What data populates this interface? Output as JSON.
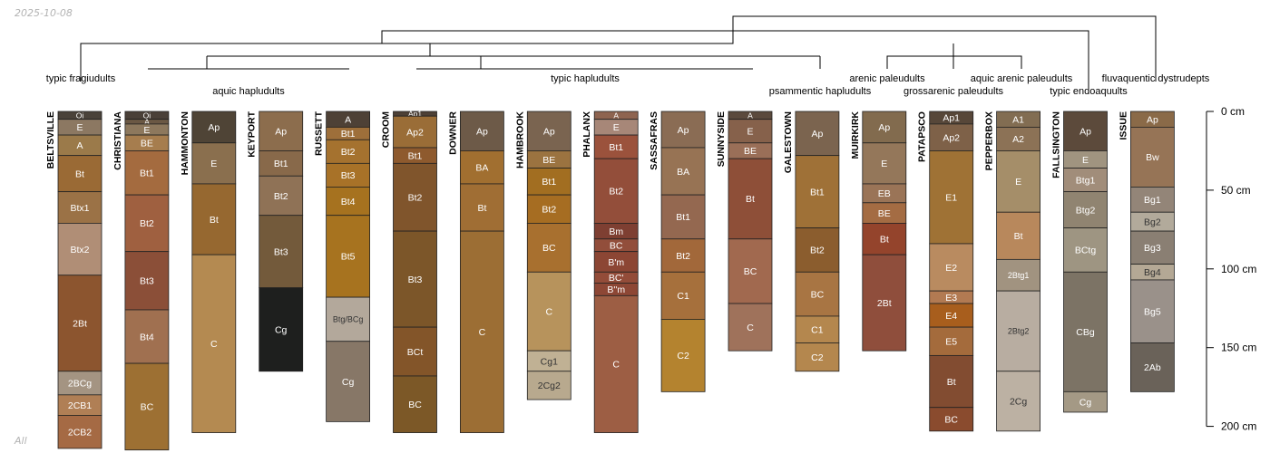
{
  "date_stamp": "2025-10-08",
  "corner_label": "All",
  "depth_axis": {
    "unit": "cm",
    "ticks": [
      {
        "depth": 0,
        "label": "0 cm"
      },
      {
        "depth": 50,
        "label": "50 cm"
      },
      {
        "depth": 100,
        "label": "100 cm"
      },
      {
        "depth": 150,
        "label": "150 cm"
      },
      {
        "depth": 200,
        "label": "200 cm"
      }
    ]
  },
  "taxa": [
    {
      "name": "typic fragiudults"
    },
    {
      "name": "aquic hapludults"
    },
    {
      "name": "typic hapludults"
    },
    {
      "name": "psammentic hapludults"
    },
    {
      "name": "arenic paleudults"
    },
    {
      "name": "grossarenic paleudults"
    },
    {
      "name": "aquic arenic paleudults"
    },
    {
      "name": "typic endoaquults"
    },
    {
      "name": "fluvaquentic dystrudepts"
    }
  ],
  "profiles": [
    {
      "name": "BELTSVILLE",
      "horizons": [
        {
          "name": "Oi",
          "top": 0,
          "bottom": 5,
          "color": "#4a423a"
        },
        {
          "name": "E",
          "top": 5,
          "bottom": 15,
          "color": "#8c7862"
        },
        {
          "name": "A",
          "top": 15,
          "bottom": 28,
          "color": "#9b7a4a"
        },
        {
          "name": "Bt",
          "top": 28,
          "bottom": 51,
          "color": "#9a6a35"
        },
        {
          "name": "Btx1",
          "top": 51,
          "bottom": 71,
          "color": "#9b7246"
        },
        {
          "name": "Btx2",
          "top": 71,
          "bottom": 104,
          "color": "#b08e76"
        },
        {
          "name": "2Bt",
          "top": 104,
          "bottom": 165,
          "color": "#8c552f"
        },
        {
          "name": "2BCg",
          "top": 165,
          "bottom": 180,
          "color": "#a49482"
        },
        {
          "name": "2CB1",
          "top": 180,
          "bottom": 193,
          "color": "#b07f55"
        },
        {
          "name": "2CB2",
          "top": 193,
          "bottom": 214,
          "color": "#a56a44"
        }
      ]
    },
    {
      "name": "CHRISTIANA",
      "horizons": [
        {
          "name": "Oi",
          "top": 0,
          "bottom": 5,
          "color": "#4a4038"
        },
        {
          "name": "A",
          "top": 5,
          "bottom": 8,
          "color": "#6b5844"
        },
        {
          "name": "E",
          "top": 8,
          "bottom": 15,
          "color": "#8d785d"
        },
        {
          "name": "BE",
          "top": 15,
          "bottom": 25,
          "color": "#a67d4e"
        },
        {
          "name": "Bt1",
          "top": 25,
          "bottom": 53,
          "color": "#a46b3f"
        },
        {
          "name": "Bt2",
          "top": 53,
          "bottom": 89,
          "color": "#9f6040"
        },
        {
          "name": "Bt3",
          "top": 89,
          "bottom": 126,
          "color": "#8b4f38"
        },
        {
          "name": "Bt4",
          "top": 126,
          "bottom": 160,
          "color": "#a07050"
        },
        {
          "name": "BC",
          "top": 160,
          "bottom": 215,
          "color": "#9d7033"
        }
      ]
    },
    {
      "name": "HAMMONTON",
      "horizons": [
        {
          "name": "Ap",
          "top": 0,
          "bottom": 20,
          "color": "#4f4436"
        },
        {
          "name": "E",
          "top": 20,
          "bottom": 46,
          "color": "#8a6f4e"
        },
        {
          "name": "Bt",
          "top": 46,
          "bottom": 91,
          "color": "#966830"
        },
        {
          "name": "C",
          "top": 91,
          "bottom": 204,
          "color": "#b48a51"
        }
      ]
    },
    {
      "name": "KEYPORT",
      "horizons": [
        {
          "name": "Ap",
          "top": 0,
          "bottom": 25,
          "color": "#8c6d4d"
        },
        {
          "name": "Bt1",
          "top": 25,
          "bottom": 41,
          "color": "#88694a"
        },
        {
          "name": "Bt2",
          "top": 41,
          "bottom": 66,
          "color": "#8f7256"
        },
        {
          "name": "Bt3",
          "top": 66,
          "bottom": 112,
          "color": "#735a3b"
        },
        {
          "name": "Cg",
          "top": 112,
          "bottom": 165,
          "color": "#1e1f1e"
        }
      ]
    },
    {
      "name": "RUSSETT",
      "horizons": [
        {
          "name": "A",
          "top": 0,
          "bottom": 10,
          "color": "#4e4136"
        },
        {
          "name": "Bt1",
          "top": 10,
          "bottom": 18,
          "color": "#9e6f3a"
        },
        {
          "name": "Bt2",
          "top": 18,
          "bottom": 33,
          "color": "#a5722f"
        },
        {
          "name": "Bt3",
          "top": 33,
          "bottom": 48,
          "color": "#a87228"
        },
        {
          "name": "Bt4",
          "top": 48,
          "bottom": 66,
          "color": "#a6721f"
        },
        {
          "name": "Bt5",
          "top": 66,
          "bottom": 118,
          "color": "#a7731f"
        },
        {
          "name": "Btg/BCg",
          "top": 118,
          "bottom": 146,
          "color": "#b3a89b"
        },
        {
          "name": "Cg",
          "top": 146,
          "bottom": 197,
          "color": "#877767"
        }
      ]
    },
    {
      "name": "CROOM",
      "horizons": [
        {
          "name": "Ap1",
          "top": 0,
          "bottom": 3,
          "color": "#4d4036"
        },
        {
          "name": "Ap2",
          "top": 3,
          "bottom": 23,
          "color": "#9a6d37"
        },
        {
          "name": "Bt1",
          "top": 23,
          "bottom": 33,
          "color": "#8e5a2e"
        },
        {
          "name": "Bt2",
          "top": 33,
          "bottom": 76,
          "color": "#80552c"
        },
        {
          "name": "Bt3",
          "top": 76,
          "bottom": 137,
          "color": "#7c5629"
        },
        {
          "name": "BCt",
          "top": 137,
          "bottom": 168,
          "color": "#835529"
        },
        {
          "name": "BC",
          "top": 168,
          "bottom": 204,
          "color": "#7c5827"
        }
      ]
    },
    {
      "name": "DOWNER",
      "horizons": [
        {
          "name": "Ap",
          "top": 0,
          "bottom": 25,
          "color": "#6d5a48"
        },
        {
          "name": "BA",
          "top": 25,
          "bottom": 46,
          "color": "#a16f30"
        },
        {
          "name": "Bt",
          "top": 46,
          "bottom": 76,
          "color": "#a06e34"
        },
        {
          "name": "C",
          "top": 76,
          "bottom": 204,
          "color": "#9c6e34"
        }
      ]
    },
    {
      "name": "HAMBROOK",
      "horizons": [
        {
          "name": "Ap",
          "top": 0,
          "bottom": 25,
          "color": "#7a6450"
        },
        {
          "name": "BE",
          "top": 25,
          "bottom": 36,
          "color": "#9b7340"
        },
        {
          "name": "Bt1",
          "top": 36,
          "bottom": 53,
          "color": "#a26e21"
        },
        {
          "name": "Bt2",
          "top": 53,
          "bottom": 71,
          "color": "#a66d22"
        },
        {
          "name": "BC",
          "top": 71,
          "bottom": 102,
          "color": "#a8702f"
        },
        {
          "name": "C",
          "top": 102,
          "bottom": 152,
          "color": "#b7935c"
        },
        {
          "name": "Cg1",
          "top": 152,
          "bottom": 165,
          "color": "#c0b194"
        },
        {
          "name": "2Cg2",
          "top": 165,
          "bottom": 183,
          "color": "#b8a98e"
        }
      ]
    },
    {
      "name": "PHALANX",
      "horizons": [
        {
          "name": "A",
          "top": 0,
          "bottom": 5,
          "color": "#8e6450"
        },
        {
          "name": "E",
          "top": 5,
          "bottom": 15,
          "color": "#a78778"
        },
        {
          "name": "Bt1",
          "top": 15,
          "bottom": 30,
          "color": "#9b523c"
        },
        {
          "name": "Bt2",
          "top": 30,
          "bottom": 71,
          "color": "#934e3a"
        },
        {
          "name": "Bm",
          "top": 71,
          "bottom": 81,
          "color": "#7e3f32"
        },
        {
          "name": "BC",
          "top": 81,
          "bottom": 89,
          "color": "#924e3b"
        },
        {
          "name": "B'm",
          "top": 89,
          "bottom": 102,
          "color": "#8c4634"
        },
        {
          "name": "BC'",
          "top": 102,
          "bottom": 109,
          "color": "#934c39"
        },
        {
          "name": "B''m",
          "top": 109,
          "bottom": 117,
          "color": "#8d4735"
        },
        {
          "name": "C",
          "top": 117,
          "bottom": 204,
          "color": "#9d5e44"
        }
      ]
    },
    {
      "name": "SASSAFRAS",
      "horizons": [
        {
          "name": "Ap",
          "top": 0,
          "bottom": 23,
          "color": "#8a6c54"
        },
        {
          "name": "BA",
          "top": 23,
          "bottom": 53,
          "color": "#977354"
        },
        {
          "name": "Bt1",
          "top": 53,
          "bottom": 81,
          "color": "#946850"
        },
        {
          "name": "Bt2",
          "top": 81,
          "bottom": 102,
          "color": "#a2683a"
        },
        {
          "name": "C1",
          "top": 102,
          "bottom": 132,
          "color": "#a6703c"
        },
        {
          "name": "C2",
          "top": 132,
          "bottom": 178,
          "color": "#b4832f"
        }
      ]
    },
    {
      "name": "SUNNYSIDE",
      "horizons": [
        {
          "name": "A",
          "top": 0,
          "bottom": 5,
          "color": "#5b4a3d"
        },
        {
          "name": "E",
          "top": 5,
          "bottom": 20,
          "color": "#86614b"
        },
        {
          "name": "BE",
          "top": 20,
          "bottom": 30,
          "color": "#9a6f58"
        },
        {
          "name": "Bt",
          "top": 30,
          "bottom": 81,
          "color": "#8e4f38"
        },
        {
          "name": "BC",
          "top": 81,
          "bottom": 122,
          "color": "#a1694f"
        },
        {
          "name": "C",
          "top": 122,
          "bottom": 152,
          "color": "#9f725b"
        }
      ]
    },
    {
      "name": "GALESTOWN",
      "horizons": [
        {
          "name": "Ap",
          "top": 0,
          "bottom": 28,
          "color": "#7b644f"
        },
        {
          "name": "Bt1",
          "top": 28,
          "bottom": 74,
          "color": "#9f7137"
        },
        {
          "name": "Bt2",
          "top": 74,
          "bottom": 102,
          "color": "#8b5d2e"
        },
        {
          "name": "BC",
          "top": 102,
          "bottom": 130,
          "color": "#a87543"
        },
        {
          "name": "C1",
          "top": 130,
          "bottom": 147,
          "color": "#b4874e"
        },
        {
          "name": "C2",
          "top": 147,
          "bottom": 165,
          "color": "#b4874e"
        }
      ]
    },
    {
      "name": "MUIRKIRK",
      "horizons": [
        {
          "name": "Ap",
          "top": 0,
          "bottom": 20,
          "color": "#826b4e"
        },
        {
          "name": "E",
          "top": 20,
          "bottom": 46,
          "color": "#94775a"
        },
        {
          "name": "EB",
          "top": 46,
          "bottom": 58,
          "color": "#9a7457"
        },
        {
          "name": "BE",
          "top": 58,
          "bottom": 71,
          "color": "#a46c43"
        },
        {
          "name": "Bt",
          "top": 71,
          "bottom": 91,
          "color": "#94442c"
        },
        {
          "name": "2Bt",
          "top": 91,
          "bottom": 152,
          "color": "#8f4e3c"
        }
      ]
    },
    {
      "name": "PATAPSCO",
      "horizons": [
        {
          "name": "Ap1",
          "top": 0,
          "bottom": 8,
          "color": "#574739"
        },
        {
          "name": "Ap2",
          "top": 8,
          "bottom": 25,
          "color": "#7e6148"
        },
        {
          "name": "E1",
          "top": 25,
          "bottom": 84,
          "color": "#9f7235"
        },
        {
          "name": "E2",
          "top": 84,
          "bottom": 114,
          "color": "#b98b60"
        },
        {
          "name": "E3",
          "top": 114,
          "bottom": 122,
          "color": "#b27a52"
        },
        {
          "name": "E4",
          "top": 122,
          "bottom": 137,
          "color": "#a85e1d"
        },
        {
          "name": "E5",
          "top": 137,
          "bottom": 155,
          "color": "#a46b3c"
        },
        {
          "name": "Bt",
          "top": 155,
          "bottom": 188,
          "color": "#824c31"
        },
        {
          "name": "BC",
          "top": 188,
          "bottom": 203,
          "color": "#8a4b2e"
        }
      ]
    },
    {
      "name": "PEPPERBOX",
      "horizons": [
        {
          "name": "A1",
          "top": 0,
          "bottom": 10,
          "color": "#826d52"
        },
        {
          "name": "A2",
          "top": 10,
          "bottom": 25,
          "color": "#8c7256"
        },
        {
          "name": "E",
          "top": 25,
          "bottom": 64,
          "color": "#a58e69"
        },
        {
          "name": "Bt",
          "top": 64,
          "bottom": 94,
          "color": "#b8885c"
        },
        {
          "name": "2Btg1",
          "top": 94,
          "bottom": 114,
          "color": "#a19380"
        },
        {
          "name": "2Btg2",
          "top": 114,
          "bottom": 165,
          "color": "#b8ada1"
        },
        {
          "name": "2Cg",
          "top": 165,
          "bottom": 203,
          "color": "#bcb1a3"
        }
      ]
    },
    {
      "name": "FALLSINGTON",
      "horizons": [
        {
          "name": "Ap",
          "top": 0,
          "bottom": 25,
          "color": "#5c4a3b"
        },
        {
          "name": "E",
          "top": 25,
          "bottom": 36,
          "color": "#a09480"
        },
        {
          "name": "Btg1",
          "top": 36,
          "bottom": 51,
          "color": "#a18d7a"
        },
        {
          "name": "Btg2",
          "top": 51,
          "bottom": 74,
          "color": "#908471"
        },
        {
          "name": "BCtg",
          "top": 74,
          "bottom": 102,
          "color": "#9e9582"
        },
        {
          "name": "CBg",
          "top": 102,
          "bottom": 178,
          "color": "#7c7365"
        },
        {
          "name": "Cg",
          "top": 178,
          "bottom": 191,
          "color": "#a49985"
        }
      ]
    },
    {
      "name": "ISSUE",
      "horizons": [
        {
          "name": "Ap",
          "top": 0,
          "bottom": 10,
          "color": "#8a6a48"
        },
        {
          "name": "Bw",
          "top": 10,
          "bottom": 48,
          "color": "#967456"
        },
        {
          "name": "Bg1",
          "top": 48,
          "bottom": 64,
          "color": "#938578"
        },
        {
          "name": "Bg2",
          "top": 64,
          "bottom": 76,
          "color": "#b2aa9b"
        },
        {
          "name": "Bg3",
          "top": 76,
          "bottom": 97,
          "color": "#8a7f73"
        },
        {
          "name": "Bg4",
          "top": 97,
          "bottom": 107,
          "color": "#b4a895"
        },
        {
          "name": "Bg5",
          "top": 107,
          "bottom": 147,
          "color": "#9a918a"
        },
        {
          "name": "2Ab",
          "top": 147,
          "bottom": 178,
          "color": "#6a6259"
        }
      ]
    }
  ]
}
